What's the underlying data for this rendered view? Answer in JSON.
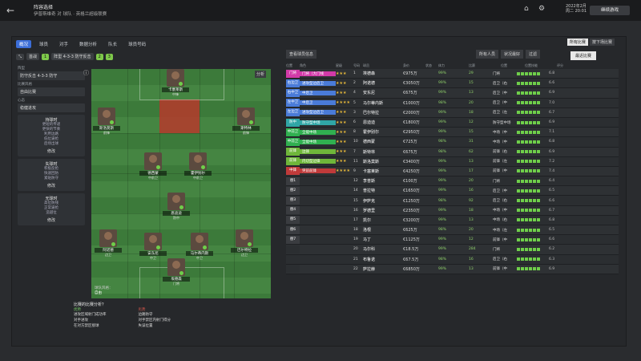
{
  "topbar": {
    "title": "阵容选择",
    "subtitle": "伊普斯维奇 对 球队 · 英格兰超级联赛",
    "date": "2022年2月",
    "time": "周二 20:01",
    "continue": "继续游戏"
  },
  "tabs": [
    "概况",
    "球员",
    "对手",
    "数据分析",
    "队长",
    "球员号码"
  ],
  "subtabs": {
    "match": "首战",
    "t1": "1",
    "formation": "阵型 4-3-3 防守反击",
    "t2": "2",
    "t3": "3"
  },
  "left": {
    "label1": "阵型",
    "value1": "防守反击 4-3-3 防守",
    "label2": "比赛风格",
    "value2": "自由比赛",
    "label3": "心态",
    "value3": "稳健进攻",
    "panel1": {
      "title": "持球时",
      "items": [
        "更短的传递",
        "更快的节奏",
        "利用边路",
        "低位逼抢",
        "后场出球"
      ],
      "btn": "修改"
    },
    "panel2": {
      "title": "失球时",
      "items": [
        "积极反抢",
        "快速回防",
        "紧贴防守"
      ],
      "btn": "修改"
    },
    "panel3": {
      "title": "无球时",
      "items": [
        "高位防线",
        "正常逼抢",
        "造越位"
      ],
      "btn": "修改"
    }
  },
  "pitch": {
    "tag": "分析",
    "hint_label": "球队风格：",
    "hint_val": "自由",
    "players": [
      {
        "name": "卡塞莱斯",
        "pos": "中锋"
      },
      {
        "name": "斯洛莫斯",
        "pos": "前锋"
      },
      {
        "name": "斯特林",
        "pos": "前锋"
      },
      {
        "name": "德西蒙",
        "pos": "中前卫"
      },
      {
        "name": "霍伊别尔",
        "pos": "中前卫"
      },
      {
        "name": "恩迪迪",
        "pos": "防中"
      },
      {
        "name": "阿诺德",
        "pos": "边卫"
      },
      {
        "name": "安东尼",
        "pos": "中卫"
      },
      {
        "name": "马尔蒂内斯",
        "pos": "中卫"
      },
      {
        "name": "巴尔特拉",
        "pos": "边卫"
      },
      {
        "name": "埃德森",
        "pos": "门将"
      }
    ]
  },
  "analysis": {
    "title": "比赛的比赛分析？",
    "strength": "优势",
    "weak": "劣势",
    "s": [
      "进攻区域射门成功率",
      "对手进攻",
      "在对方禁区接球"
    ],
    "w": [
      "边路防守",
      "对手禁区内射门得分",
      "失误位置"
    ]
  },
  "tablebar": {
    "view": "查看球员信息",
    "tags": [
      "所有人员",
      "状况最好",
      "过滤"
    ],
    "right": [
      "所有比赛",
      "按下场比赛"
    ],
    "compare": "最近比赛"
  },
  "headers": [
    "位置",
    "角色",
    "星级",
    "号码",
    "球员",
    "身价",
    "状态",
    "体力",
    "比赛",
    "位置",
    "位置技能",
    "评分"
  ],
  "rows": [
    {
      "pos": "门将",
      "color": "#d23aa8",
      "role": "门将（大门线",
      "stars": "★★★",
      "num": "1",
      "name": "埃德森",
      "val": "€975万",
      "badge": "",
      "cond": "99%",
      "mor": "29",
      "ppos": "门将",
      "rat": "6.8"
    },
    {
      "pos": "右边卫",
      "color": "#4a7bd8",
      "role": "进攻型边后卫",
      "stars": "★★★",
      "num": "2",
      "name": "阿诺德",
      "val": "€3050万",
      "badge": "",
      "cond": "99%",
      "mor": "15",
      "ppos": "后卫（右",
      "rat": "6.6"
    },
    {
      "pos": "右中卫",
      "color": "#4a7bd8",
      "role": "中后卫",
      "stars": "★★★",
      "num": "4",
      "name": "安东尼",
      "val": "€675万",
      "badge": "",
      "cond": "99%",
      "mor": "13",
      "ppos": "后卫（中",
      "rat": "6.9"
    },
    {
      "pos": "左中卫",
      "color": "#4a7bd8",
      "role": "中后卫",
      "stars": "★★★★",
      "num": "5",
      "name": "马尔蒂内斯",
      "val": "€1000万",
      "badge": "",
      "cond": "98%",
      "mor": "20",
      "ppos": "后卫（中",
      "rat": "7.0"
    },
    {
      "pos": "左边卫",
      "color": "#4a7bd8",
      "role": "进攻型边后卫",
      "stars": "★★★",
      "num": "3",
      "name": "巴尔特拉",
      "val": "€2000万",
      "badge": "",
      "cond": "99%",
      "mor": "18",
      "ppos": "后卫（左",
      "rat": "6.7"
    },
    {
      "pos": "防中",
      "color": "#30a6a6",
      "role": "防守型中场",
      "stars": "★★★",
      "num": "6",
      "name": "恩迪迪",
      "val": "€1800万",
      "badge": "",
      "cond": "99%",
      "mor": "12",
      "ppos": "防守型中场",
      "rat": "6.9"
    },
    {
      "pos": "中前卫",
      "color": "#30b050",
      "role": "全能中场",
      "stars": "★★★",
      "num": "8",
      "name": "霍伊别尔",
      "val": "€2950万",
      "badge": "",
      "cond": "99%",
      "mor": "15",
      "ppos": "中场（中",
      "rat": "7.1"
    },
    {
      "pos": "中前卫",
      "color": "#30b050",
      "role": "全能中场",
      "stars": "★★★",
      "num": "10",
      "name": "德西蒙",
      "val": "€725万",
      "badge": "",
      "cond": "98%",
      "mor": "31",
      "ppos": "中场（中",
      "rat": "6.8"
    },
    {
      "pos": "前锋",
      "color": "#6fb63a",
      "role": "边锋",
      "stars": "★★★",
      "num": "7",
      "name": "斯特林",
      "val": "€675万",
      "badge": "",
      "cond": "98%",
      "mor": "62",
      "ppos": "前锋（右",
      "rat": "6.9"
    },
    {
      "pos": "前锋",
      "color": "#6fb63a",
      "role": "内切型边锋",
      "stars": "★★★",
      "num": "11",
      "name": "斯洛莫斯",
      "val": "€3400万",
      "badge": "",
      "cond": "99%",
      "mor": "13",
      "ppos": "前锋（左",
      "rat": "7.2"
    },
    {
      "pos": "中锋",
      "color": "#c03a3a",
      "role": "突前前锋",
      "stars": "★★★★",
      "num": "9",
      "name": "卡塞莱斯",
      "val": "€4250万",
      "badge": "",
      "cond": "99%",
      "mor": "17",
      "ppos": "前锋（中",
      "rat": "7.4"
    },
    {
      "pos": "替1",
      "color": "#3a3c40",
      "role": "",
      "stars": "",
      "num": "12",
      "name": "李普斯",
      "val": "€100万",
      "badge": "",
      "cond": "99%",
      "mor": "20",
      "ppos": "门将",
      "rat": "6.4"
    },
    {
      "pos": "替2",
      "color": "#3a3c40",
      "role": "",
      "stars": "",
      "num": "14",
      "name": "普拉特",
      "val": "€1650万",
      "badge": "",
      "cond": "99%",
      "mor": "16",
      "ppos": "后卫（中",
      "rat": "6.5"
    },
    {
      "pos": "替3",
      "color": "#3a3c40",
      "role": "",
      "stars": "",
      "num": "15",
      "name": "伊萨克",
      "val": "€1250万",
      "badge": "",
      "cond": "98%",
      "mor": "92",
      "ppos": "后卫（右",
      "rat": "6.6"
    },
    {
      "pos": "替4",
      "color": "#3a3c40",
      "role": "",
      "stars": "",
      "num": "16",
      "name": "罗德里",
      "val": "€2350万",
      "badge": "",
      "cond": "99%",
      "mor": "18",
      "ppos": "中场（中",
      "rat": "6.7"
    },
    {
      "pos": "替5",
      "color": "#3a3c40",
      "role": "",
      "stars": "",
      "num": "17",
      "name": "凯尔",
      "val": "€3200万",
      "badge": "",
      "cond": "99%",
      "mor": "13",
      "ppos": "中场（右",
      "rat": "6.8"
    },
    {
      "pos": "替6",
      "color": "#3a3c40",
      "role": "",
      "stars": "",
      "num": "18",
      "name": "洛根",
      "val": "€625万",
      "badge": "",
      "cond": "98%",
      "mor": "20",
      "ppos": "中场（左",
      "rat": "6.5"
    },
    {
      "pos": "替7",
      "color": "#3a3c40",
      "role": "",
      "stars": "",
      "num": "19",
      "name": "马丁",
      "val": "€1125万",
      "badge": "",
      "cond": "99%",
      "mor": "12",
      "ppos": "前锋（中",
      "rat": "6.6"
    },
    {
      "pos": "",
      "color": "#2b2e31",
      "role": "",
      "stars": "",
      "num": "20",
      "name": "马尔科",
      "val": "€18.5万",
      "badge": "",
      "cond": "99%",
      "mor": "284",
      "ppos": "门将",
      "rat": "6.2"
    },
    {
      "pos": "",
      "color": "#2b2e31",
      "role": "",
      "stars": "",
      "num": "21",
      "name": "布鲁诺",
      "val": "€67.5万",
      "badge": "",
      "cond": "98%",
      "mor": "16",
      "ppos": "后卫（右",
      "rat": "6.3"
    },
    {
      "pos": "",
      "color": "#2b2e31",
      "role": "",
      "stars": "",
      "num": "22",
      "name": "萨拉赫",
      "val": "€6850万",
      "badge": "",
      "cond": "99%",
      "mor": "13",
      "ppos": "前锋（中",
      "rat": "6.9"
    }
  ]
}
